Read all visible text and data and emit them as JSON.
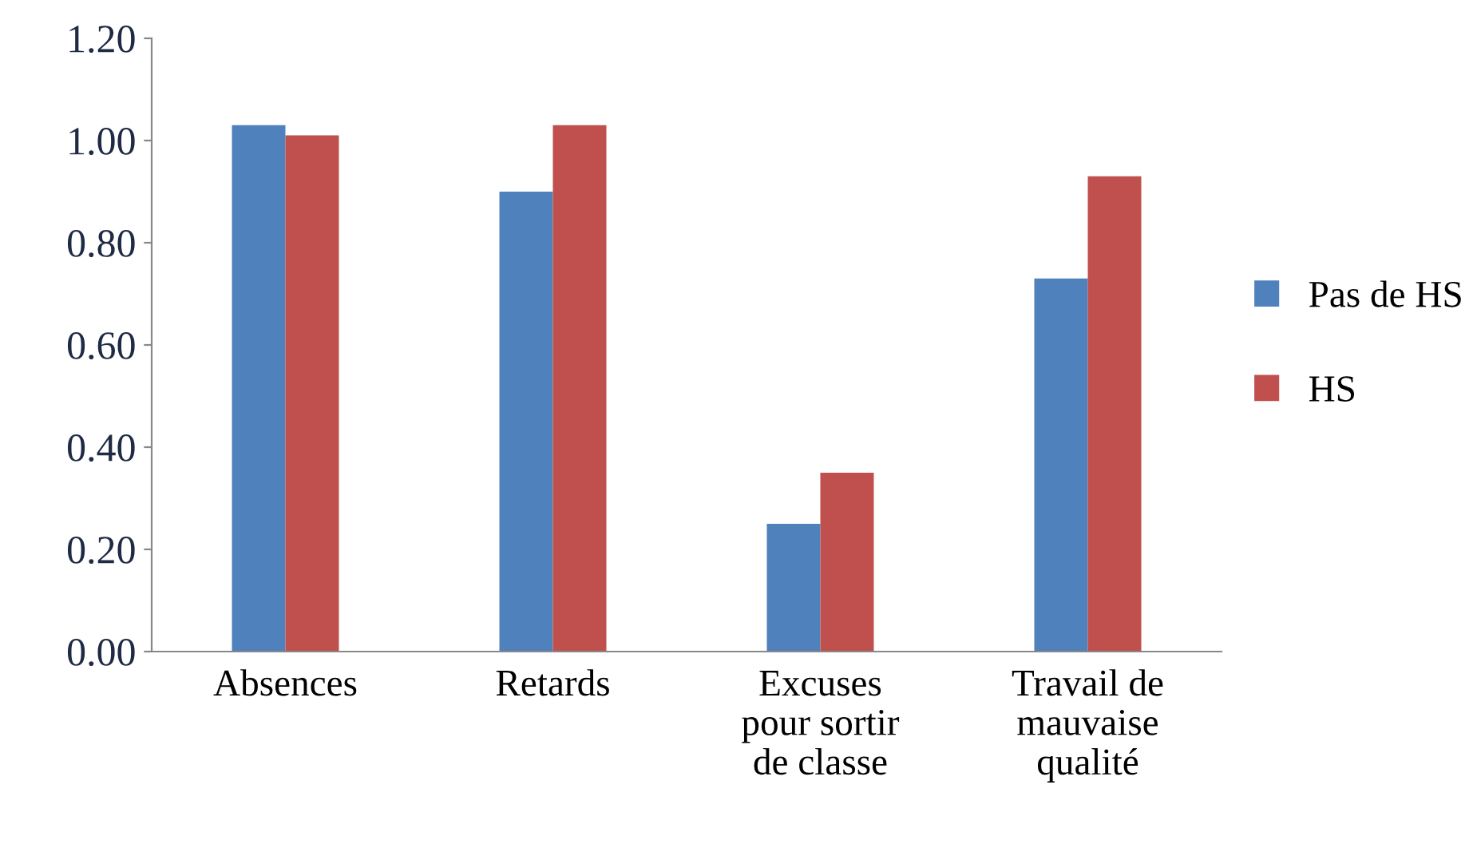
{
  "chart_data": {
    "type": "bar",
    "categories": [
      "Absences",
      "Retards",
      "Excuses\npour sortir\nde classe",
      "Travail de\nmauvaise\nqualité"
    ],
    "series": [
      {
        "name": "Pas de HS",
        "color": "#4f81bd",
        "values": [
          1.03,
          0.9,
          0.25,
          0.73
        ]
      },
      {
        "name": "HS",
        "color": "#c0504d",
        "values": [
          1.01,
          1.03,
          0.35,
          0.93
        ]
      }
    ],
    "ylim": [
      0,
      1.2
    ],
    "yticks": [
      {
        "value": 0,
        "label": "0.00"
      },
      {
        "value": 0.2,
        "label": "0.20"
      },
      {
        "value": 0.4,
        "label": "0.40"
      },
      {
        "value": 0.6,
        "label": "0.60"
      },
      {
        "value": 0.8,
        "label": "0.80"
      },
      {
        "value": 1.0,
        "label": "1.00"
      },
      {
        "value": 1.2,
        "label": "1.20"
      }
    ],
    "grid": false,
    "legend": "right"
  }
}
